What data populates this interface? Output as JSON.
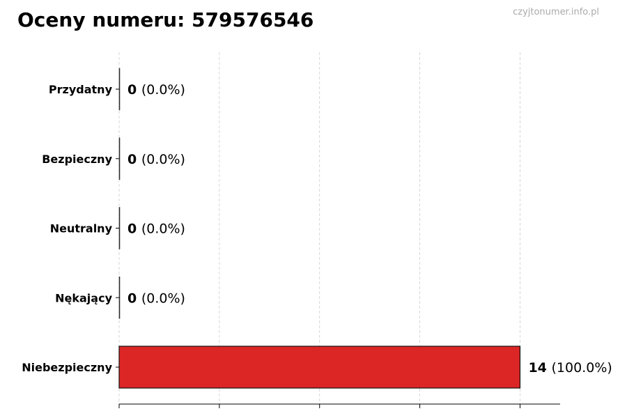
{
  "watermark": "czyjtonumer.info.pl",
  "chart_data": {
    "type": "bar",
    "orientation": "horizontal",
    "title": "Oceny numeru: 579576546",
    "categories": [
      "Przydatny",
      "Bezpieczny",
      "Neutralny",
      "Nękający",
      "Niebezpieczny"
    ],
    "values": [
      0,
      0,
      0,
      0,
      14
    ],
    "data_labels": [
      "(0.0%)",
      "(0.0%)",
      "(0.0%)",
      "(0.0%)",
      "(100.0%)"
    ],
    "xlim": [
      0,
      15.4
    ],
    "x_ticks": [
      0,
      3.5,
      7,
      10.5,
      14
    ],
    "grid": "vertical dashed",
    "bar_color": "#dc2626",
    "xlabel": "",
    "ylabel": ""
  }
}
